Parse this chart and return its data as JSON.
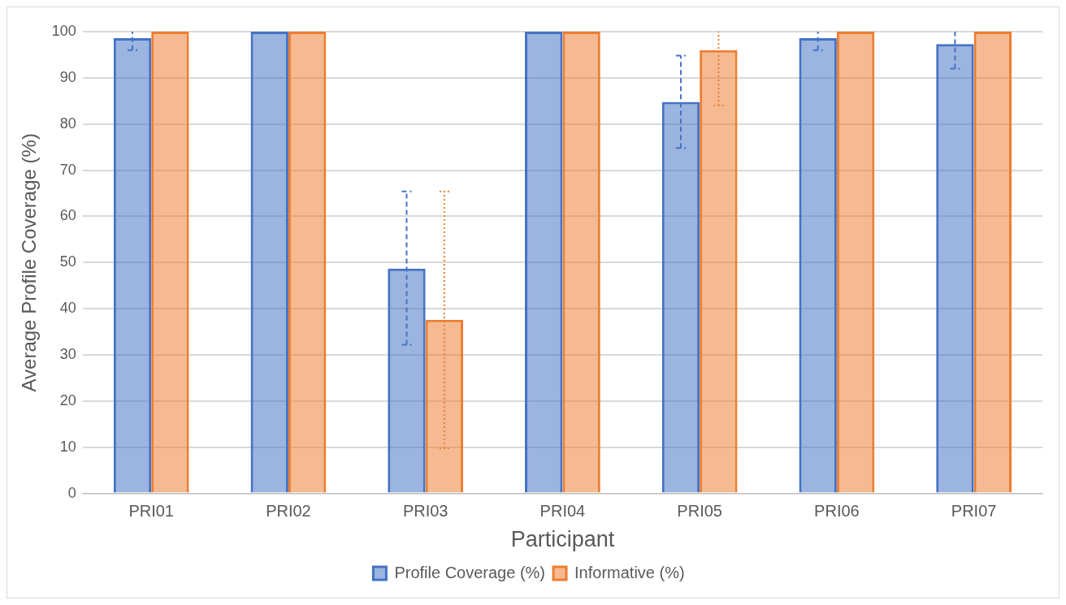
{
  "chart_data": {
    "type": "bar",
    "xlabel": "Participant",
    "ylabel": "Average Profile Coverage (%)",
    "categories": [
      "PRI01",
      "PRI02",
      "PRI03",
      "PRI04",
      "PRI05",
      "PRI06",
      "PRI07"
    ],
    "series": [
      {
        "name": "Profile Coverage (%)",
        "color": "#4472c4",
        "line_style": "dashed",
        "values": [
          98.6,
          100,
          48.7,
          100,
          84.8,
          98.6,
          97.3
        ],
        "errors": [
          [
            96,
            100
          ],
          null,
          [
            32.2,
            65.4
          ],
          null,
          [
            74.8,
            94.8
          ],
          [
            96,
            100
          ],
          [
            92,
            100
          ]
        ]
      },
      {
        "name": "Informative (%)",
        "color": "#ed7d31",
        "line_style": "dotted",
        "values": [
          100,
          100,
          37.6,
          100,
          96,
          100,
          100
        ],
        "errors": [
          null,
          null,
          [
            9.8,
            65.4
          ],
          null,
          [
            84,
            100
          ],
          null,
          null
        ]
      }
    ],
    "ylim": [
      0,
      100
    ],
    "yticks": [
      0,
      10,
      20,
      30,
      40,
      50,
      60,
      70,
      80,
      90,
      100
    ],
    "grid": "y",
    "legend": "bottom"
  }
}
